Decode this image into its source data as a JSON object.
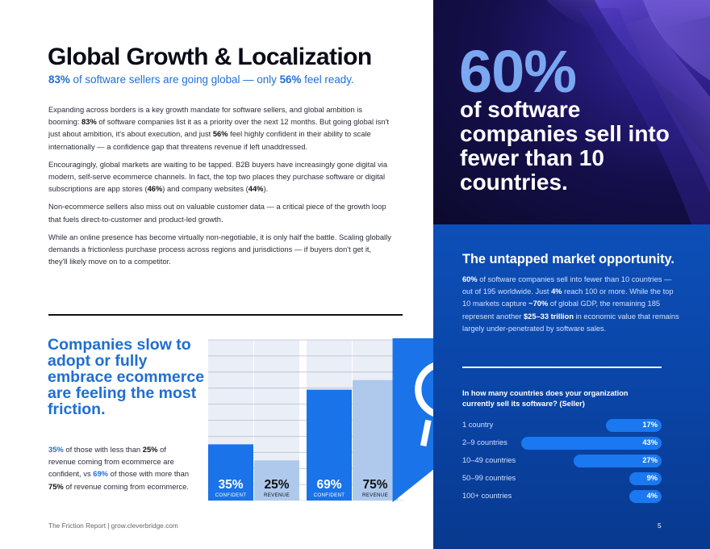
{
  "title": "Global Growth & Localization",
  "subtitle": {
    "pct1": "83%",
    "text1": " of software sellers are going global — only ",
    "pct2": "56%",
    "text2": " feel ready."
  },
  "body": {
    "p1": {
      "t1": "Expanding across borders is a key growth mandate for software sellers, and global ambition is booming: ",
      "b1": "83%",
      "t2": " of software companies list it as a priority over the next 12 months. But going global isn't just about ambition, it's about execution, and just ",
      "b2": "56%",
      "t3": " feel highly confident in their ability to scale internationally — a confidence gap that threatens revenue if left unaddressed."
    },
    "p2": {
      "t1": "Encouragingly, global markets are waiting to be tapped. B2B buyers have increasingly gone digital via modern, self-serve ecommerce channels. In fact, the top two places they purchase software or digital subscriptions are app stores (",
      "b1": "46%",
      "t2": ") and company websites (",
      "b2": "44%",
      "t3": ")."
    },
    "p3": "Non-ecommerce sellers also miss out on valuable customer data — a critical piece of the growth loop that fuels direct-to-customer and product-led growth.",
    "p4": "While an online presence has become virtually non-negotiable, it is only half the battle. Scaling globally demands a frictionless purchase process across regions and jurisdictions — if buyers don't get it, they'll likely move on to a competitor."
  },
  "callout": {
    "heading": "Companies slow to adopt or fully embrace ecommerce are feeling the most friction.",
    "b1": "35%",
    "t1": " of those with less than ",
    "b2": "25%",
    "t2": " of revenue coming from ecommerce are confident, vs ",
    "b3": "69%",
    "t3": " of those with more than ",
    "b4": "75%",
    "t4": " of revenue coming from ecommerce."
  },
  "chart_data": {
    "type": "bar",
    "categories": [
      "CONFIDENT",
      "REVENUE",
      "CONFIDENT",
      "REVENUE"
    ],
    "values": [
      35,
      25,
      69,
      75
    ],
    "labels": [
      "35%",
      "25%",
      "69%",
      "75%"
    ],
    "colors": [
      "#1a73e8",
      "#aec9ec",
      "#1a73e8",
      "#aec9ec"
    ],
    "ylim": [
      0,
      100
    ],
    "grid": true,
    "title": "",
    "xlabel": "",
    "ylabel": ""
  },
  "hero": {
    "pct": "60%",
    "text": "of software companies sell into fewer than 10 countries."
  },
  "panel": {
    "title": "The untapped market opportunity.",
    "b1": "60%",
    "t1": " of software companies sell into fewer than 10 countries — out of 195 worldwide. Just ",
    "b2": "4%",
    "t2": " reach 100 or more. While the top 10 markets capture ",
    "b3": "~70%",
    "t3": " of global GDP, the remaining 185 represent another ",
    "b4": "$25–33 trillion",
    "t4": " in economic value that remains largely under-penetrated by software sales.",
    "question": "In how many countries does your organization currently sell its software? (Seller)",
    "rows": [
      {
        "label": "1 country",
        "value": 17,
        "display": "17%"
      },
      {
        "label": "2–9 countries",
        "value": 43,
        "display": "43%"
      },
      {
        "label": "10–49 countries",
        "value": 27,
        "display": "27%"
      },
      {
        "label": "50–99 countries",
        "value": 9,
        "display": "9%"
      },
      {
        "label": "100+ countries",
        "value": 4,
        "display": "4%"
      }
    ]
  },
  "footer": "The Friction Report  |  grow.cleverbridge.com",
  "page_number": "5",
  "colors": {
    "accent": "#1f6fd1",
    "panel": "#0a44a5",
    "bar": "#1a78f0"
  }
}
